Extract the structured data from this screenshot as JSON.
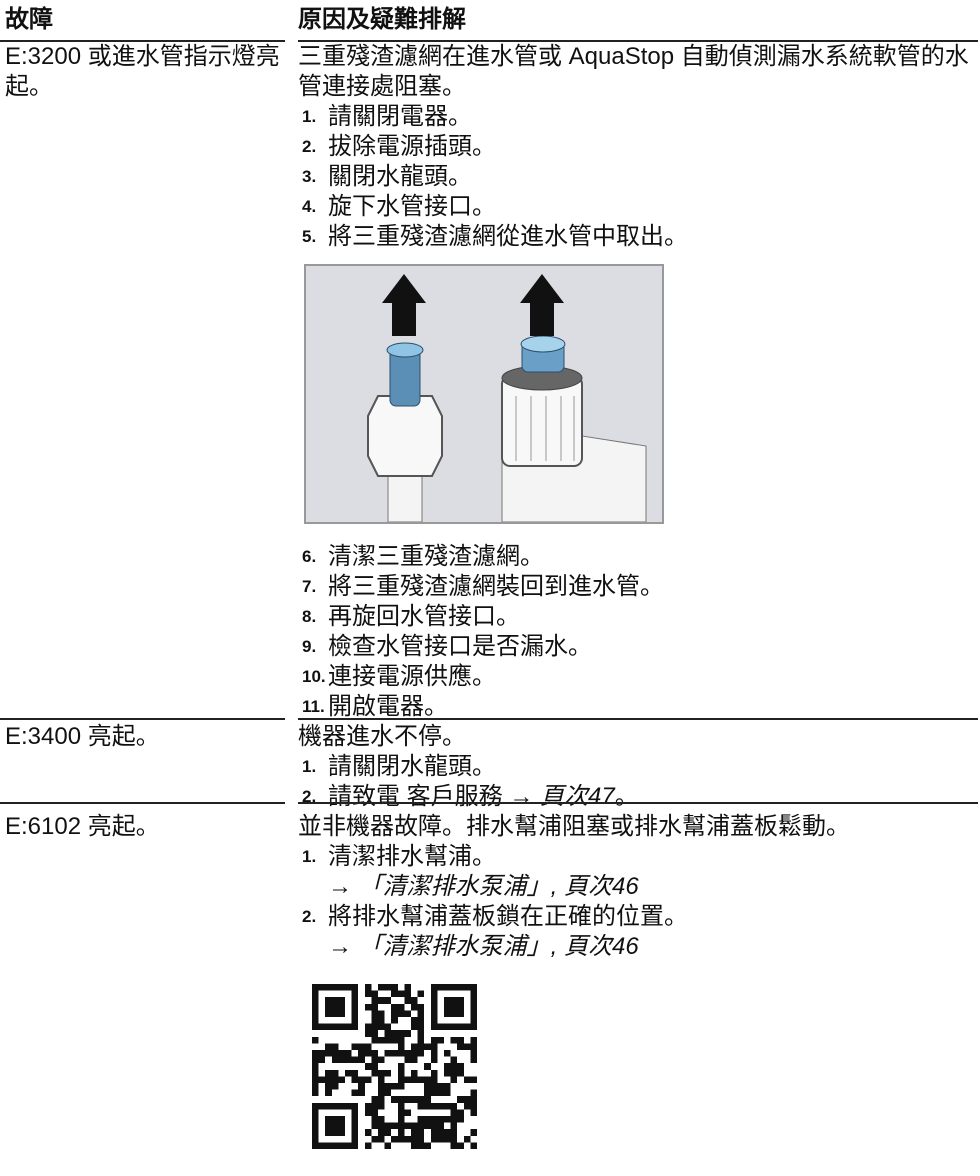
{
  "header": {
    "fault": "故障",
    "cause": "原因及疑難排解"
  },
  "rows": [
    {
      "fault": "E:3200 或進水管指示燈亮起。",
      "cause": "三重殘渣濾網在進水管或 AquaStop 自動偵測漏水系統軟管的水管連接處阻塞。",
      "steps_before": [
        {
          "number": "1.",
          "text": "請關閉電器。"
        },
        {
          "number": "2.",
          "text": "拔除電源插頭。"
        },
        {
          "number": "3.",
          "text": "關閉水龍頭。"
        },
        {
          "number": "4.",
          "text": "旋下水管接口。"
        },
        {
          "number": "5.",
          "text": "將三重殘渣濾網從進水管中取出。"
        }
      ],
      "steps_after": [
        {
          "number": "6.",
          "text": "清潔三重殘渣濾網。"
        },
        {
          "number": "7.",
          "text": "將三重殘渣濾網裝回到進水管。"
        },
        {
          "number": "8.",
          "text": "再旋回水管接口。"
        },
        {
          "number": "9.",
          "text": "檢查水管接口是否漏水。"
        },
        {
          "number": "10.",
          "text": "連接電源供應。"
        },
        {
          "number": "11.",
          "text": "開啟電器。"
        }
      ]
    },
    {
      "fault": "E:3400 亮起。",
      "cause": "機器進水不停。",
      "steps": [
        {
          "number": "1.",
          "text": "請關閉水龍頭。"
        },
        {
          "number": "2.",
          "text": "請致電 客戶服務 →",
          "link": "頁次47",
          "end": "。"
        }
      ]
    },
    {
      "fault": "E:6102 亮起。",
      "cause": "並非機器故障。排水幫浦阻塞或排水幫浦蓋板鬆動。",
      "steps": [
        {
          "number": "1.",
          "text": "清潔排水幫浦。",
          "reference": "→ 「清潔排水泵浦」, 頁次46"
        },
        {
          "number": "2.",
          "text": "將排水幫浦蓋板鎖在正確的位置。",
          "reference": "→ 「清潔排水泵浦」, 頁次46"
        }
      ]
    }
  ]
}
